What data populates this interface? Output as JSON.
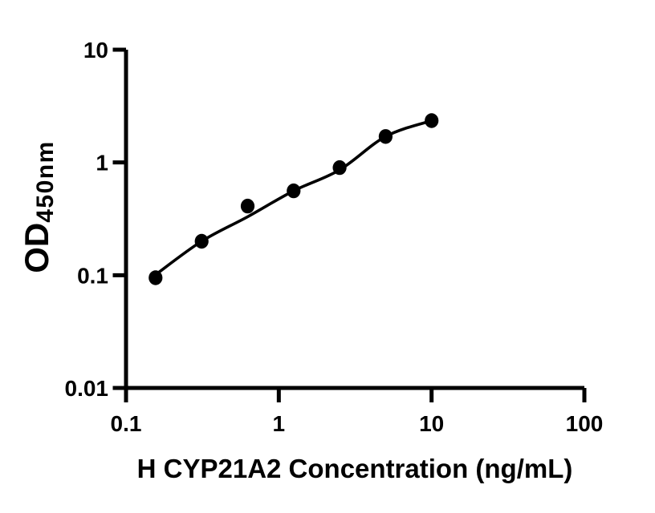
{
  "figure": {
    "background": "#ffffff",
    "foreground": "#000000"
  },
  "chart_data": {
    "type": "scatter",
    "title": "",
    "xlabel": "H CYP21A2 Concentration (ng/mL)",
    "ylabel": "OD450nm",
    "ylabel_main": "OD",
    "ylabel_sub": "450nm",
    "xscale": "log",
    "yscale": "log",
    "xlim": [
      0.1,
      100
    ],
    "ylim": [
      0.01,
      10
    ],
    "x_tick_labels": [
      "0.1",
      "1",
      "10",
      "100"
    ],
    "y_tick_labels": [
      "10",
      "1",
      "0.1",
      "0.01"
    ],
    "grid": false,
    "legend_position": "none",
    "marker": "filled-circle",
    "marker_color": "#000000",
    "line_color": "#000000",
    "series": [
      {
        "x": [
          0.156,
          0.3125,
          0.625,
          1.25,
          2.5,
          5,
          10
        ],
        "y": [
          0.095,
          0.2,
          0.41,
          0.56,
          0.9,
          1.7,
          2.35
        ]
      }
    ],
    "fit_curve": {
      "x": [
        0.156,
        0.3125,
        0.625,
        1.25,
        2.5,
        5,
        10
      ],
      "y": [
        0.101,
        0.2,
        0.33,
        0.56,
        0.86,
        1.7,
        2.35
      ]
    }
  }
}
